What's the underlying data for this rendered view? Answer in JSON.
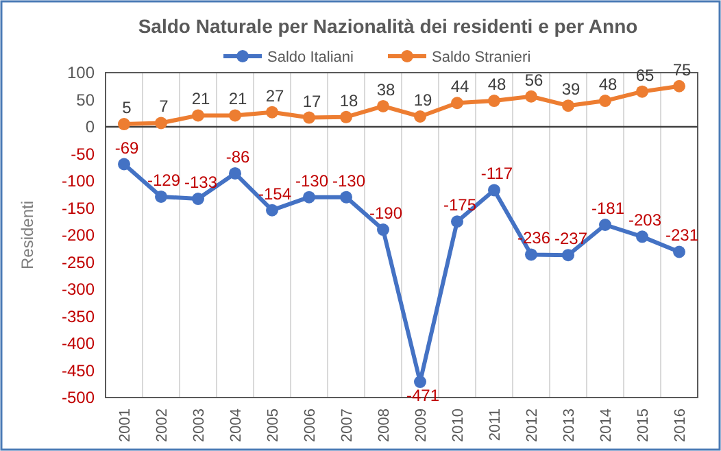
{
  "chart_data": {
    "type": "line",
    "title": "Saldo Naturale per Nazionalità dei residenti e per Anno",
    "ylabel": "Residenti",
    "categories": [
      "2001",
      "2002",
      "2003",
      "2004",
      "2005",
      "2006",
      "2007",
      "2008",
      "2009",
      "2010",
      "2011",
      "2012",
      "2013",
      "2014",
      "2015",
      "2016"
    ],
    "series": [
      {
        "name": "Saldo Italiani",
        "color": "#4472c4",
        "values": [
          -69,
          -129,
          -133,
          -86,
          -154,
          -130,
          -130,
          -190,
          -471,
          -175,
          -117,
          -236,
          -237,
          -181,
          -203,
          -231
        ]
      },
      {
        "name": "Saldo Stranieri",
        "color": "#ed7d31",
        "values": [
          5,
          7,
          21,
          21,
          27,
          17,
          18,
          38,
          19,
          44,
          48,
          56,
          39,
          48,
          65,
          75
        ]
      }
    ],
    "ylim": [
      -500,
      100
    ],
    "yticks": [
      -500,
      -450,
      -400,
      -350,
      -300,
      -250,
      -200,
      -150,
      -100,
      -50,
      0,
      50,
      100
    ],
    "grid": "x",
    "legend": "top",
    "marker": "circle",
    "line_style": "solid",
    "data_labels": true
  }
}
